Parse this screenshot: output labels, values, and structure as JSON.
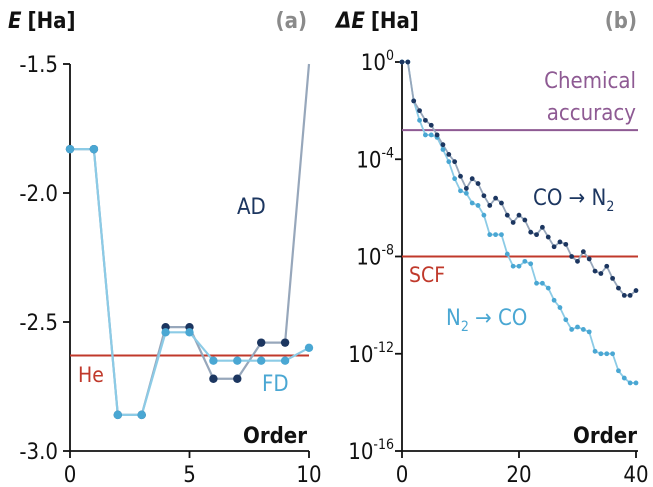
{
  "chart_data": [
    {
      "type": "line",
      "panel_label": "(a)",
      "ylabel": "E [Ha]",
      "ylabel_var": "E",
      "ylabel_unit": "[Ha]",
      "xlabel": "Order",
      "xlim": [
        0,
        10
      ],
      "ylim": [
        -3.0,
        -1.5
      ],
      "xticks": [
        0,
        5,
        10
      ],
      "xtick_labels": [
        "0",
        "5",
        "10"
      ],
      "yticks": [
        -1.5,
        -2.0,
        -2.5,
        -3.0
      ],
      "ytick_labels": [
        "-1.5",
        "-2.0",
        "-2.5",
        "-3.0"
      ],
      "series": [
        {
          "name": "AD",
          "color": "#1c3660",
          "line_color": "#97a7bb",
          "x": [
            0,
            1,
            2,
            3,
            4,
            5,
            6,
            7,
            8,
            9,
            10
          ],
          "y": [
            -1.83,
            -1.83,
            -2.86,
            -2.86,
            -2.52,
            -2.52,
            -2.72,
            -2.72,
            -2.58,
            -2.58,
            -1.5
          ]
        },
        {
          "name": "FD",
          "color": "#4aa7d3",
          "line_color": "#8ccbe6",
          "x": [
            0,
            1,
            2,
            3,
            4,
            5,
            6,
            7,
            8,
            9,
            10
          ],
          "y": [
            -1.83,
            -1.83,
            -2.86,
            -2.86,
            -2.54,
            -2.54,
            -2.65,
            -2.65,
            -2.65,
            -2.65,
            -2.6
          ]
        }
      ],
      "reference_lines": [
        {
          "name": "He",
          "y": -2.63,
          "color": "#c0392b"
        }
      ]
    },
    {
      "type": "line",
      "panel_label": "(b)",
      "ylabel": "ΔE [Ha]",
      "ylabel_var": "ΔE",
      "ylabel_unit": "[Ha]",
      "xlabel": "Order",
      "yscale": "log",
      "xlim": [
        0,
        40
      ],
      "ylim_exp": [
        -16,
        0
      ],
      "xticks": [
        0,
        20,
        40
      ],
      "xtick_labels": [
        "0",
        "20",
        "40"
      ],
      "yticks_exp": [
        0,
        -4,
        -8,
        -12,
        -16
      ],
      "ytick_base": "10",
      "ytick_exps": [
        "0",
        "-4",
        "-8",
        "-12",
        "-16"
      ],
      "series": [
        {
          "name": "CO → N2",
          "label_main": "CO → N",
          "label_sub": "2",
          "color": "#1c3660",
          "line_color": "#97a7bb",
          "x": [
            0,
            1,
            2,
            3,
            4,
            5,
            6,
            7,
            8,
            9,
            10,
            11,
            12,
            13,
            14,
            15,
            16,
            17,
            18,
            19,
            20,
            21,
            22,
            23,
            24,
            25,
            26,
            27,
            28,
            29,
            30,
            31,
            32,
            33,
            34,
            35,
            36,
            37,
            38,
            39,
            40
          ],
          "log10_y": [
            0,
            0,
            -1.6,
            -2.0,
            -2.4,
            -2.6,
            -3.0,
            -3.4,
            -3.8,
            -4.1,
            -4.7,
            -5.2,
            -4.8,
            -5.0,
            -5.5,
            -5.9,
            -5.6,
            -5.8,
            -6.3,
            -6.6,
            -6.3,
            -6.5,
            -7.0,
            -7.1,
            -6.8,
            -7.2,
            -7.6,
            -7.4,
            -7.5,
            -8.0,
            -8.2,
            -7.8,
            -8.1,
            -8.6,
            -8.7,
            -8.4,
            -8.9,
            -9.3,
            -9.6,
            -9.6,
            -9.4
          ]
        },
        {
          "name": "N2 → CO",
          "label_main": "N",
          "label_sub": "2",
          "label_rest": " → CO",
          "color": "#4aa7d3",
          "line_color": "#8ccbe6",
          "x": [
            0,
            1,
            2,
            3,
            4,
            5,
            6,
            7,
            8,
            9,
            10,
            11,
            12,
            13,
            14,
            15,
            16,
            17,
            18,
            19,
            20,
            21,
            22,
            23,
            24,
            25,
            26,
            27,
            28,
            29,
            30,
            31,
            32,
            33,
            34,
            35,
            36,
            37,
            38,
            39,
            40
          ],
          "log10_y": [
            0,
            0,
            -1.6,
            -2.4,
            -3.0,
            -3.0,
            -3.1,
            -3.6,
            -4.1,
            -4.8,
            -5.3,
            -5.4,
            -5.8,
            -5.9,
            -6.3,
            -7.1,
            -7.1,
            -7.1,
            -7.9,
            -8.4,
            -8.4,
            -8.2,
            -8.3,
            -9.1,
            -9.1,
            -9.3,
            -9.8,
            -10.1,
            -10.6,
            -11.0,
            -10.9,
            -11.0,
            -11.1,
            -11.9,
            -12.0,
            -12.0,
            -12.0,
            -12.7,
            -13.0,
            -13.2,
            -13.2
          ]
        }
      ],
      "reference_lines": [
        {
          "name": "Chemical accuracy",
          "label_line1": "Chemical",
          "label_line2": "accuracy",
          "log10_y": -2.8,
          "color": "#8e5a93"
        },
        {
          "name": "SCF",
          "log10_y": -8.0,
          "color": "#c0392b"
        }
      ]
    }
  ]
}
